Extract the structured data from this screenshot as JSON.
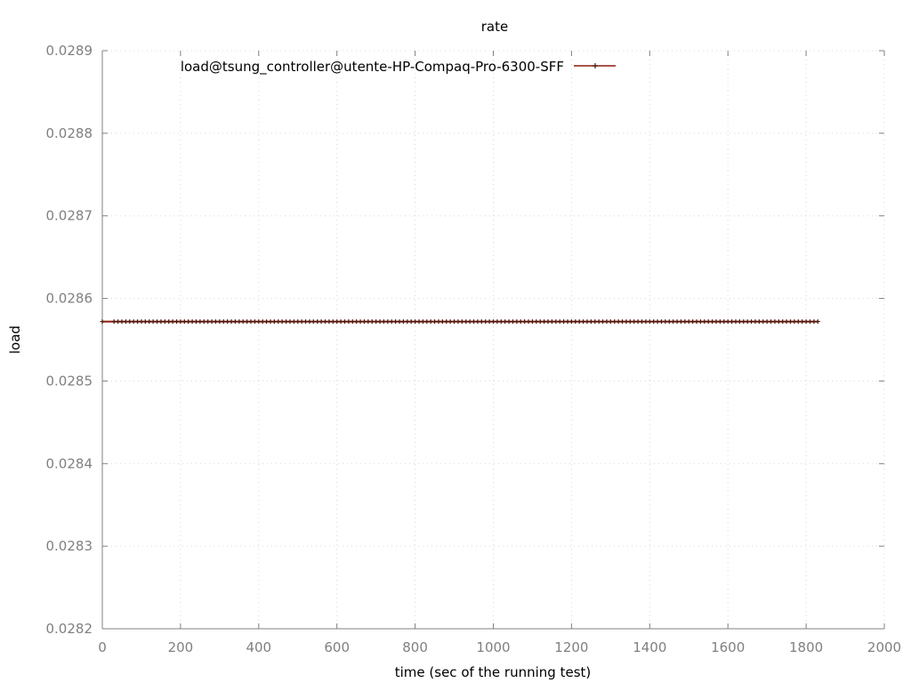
{
  "chart_data": {
    "type": "line",
    "title": "rate",
    "xlabel": "time (sec of the running test)",
    "ylabel": "load",
    "xlim": [
      0,
      2000
    ],
    "ylim": [
      0.0282,
      0.0289
    ],
    "xticks": [
      0,
      200,
      400,
      600,
      800,
      1000,
      1200,
      1400,
      1600,
      1800,
      2000
    ],
    "yticks": [
      0.0282,
      0.0283,
      0.0284,
      0.0285,
      0.0286,
      0.0287,
      0.0288,
      0.0289
    ],
    "grid": true,
    "legend_position": "top-left",
    "series": [
      {
        "name": "load@tsung_controller@utente-HP-Compaq-Pro-6300-SFF",
        "color": "#8b1a0e",
        "marker_color": "#4a1a10",
        "x_start": 0,
        "x_first_regular": 30,
        "x_end": 1830,
        "x_step": 10,
        "y": 0.028572
      }
    ]
  }
}
